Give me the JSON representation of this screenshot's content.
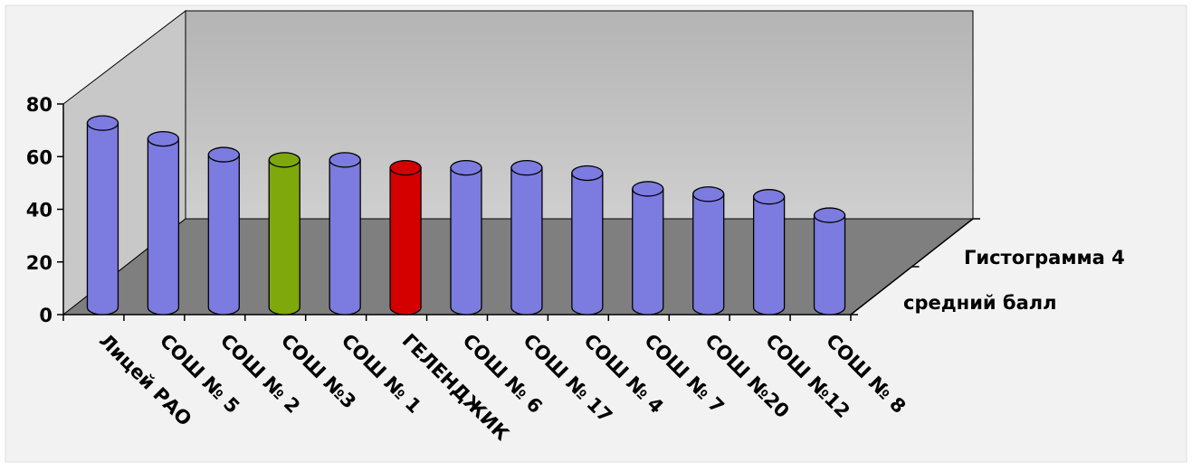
{
  "chart_data": {
    "type": "bar3d",
    "categories": [
      "Лицей РАО",
      "СОШ № 5",
      "СОШ № 2",
      "СОШ №3",
      "СОШ № 1",
      "ГЕЛЕНДЖИК",
      "СОШ № 6",
      "СОШ № 17",
      "СОШ № 4",
      "СОШ № 7",
      "СОШ №20",
      "СОШ №12",
      "СОШ № 8"
    ],
    "depth_categories": [
      "средний балл",
      "Гистограмма 4"
    ],
    "series": [
      {
        "name": "средний балл",
        "values": [
          70,
          64,
          58,
          56,
          56,
          53,
          53,
          53,
          51,
          45,
          43,
          42,
          35
        ],
        "colors": [
          "#7b7be0",
          "#7b7be0",
          "#7b7be0",
          "#7ea80c",
          "#7b7be0",
          "#d40000",
          "#7b7be0",
          "#7b7be0",
          "#7b7be0",
          "#7b7be0",
          "#7b7be0",
          "#7b7be0",
          "#7b7be0"
        ]
      }
    ],
    "ylim": [
      0,
      80
    ],
    "yticks": [
      0,
      20,
      40,
      60,
      80
    ]
  }
}
